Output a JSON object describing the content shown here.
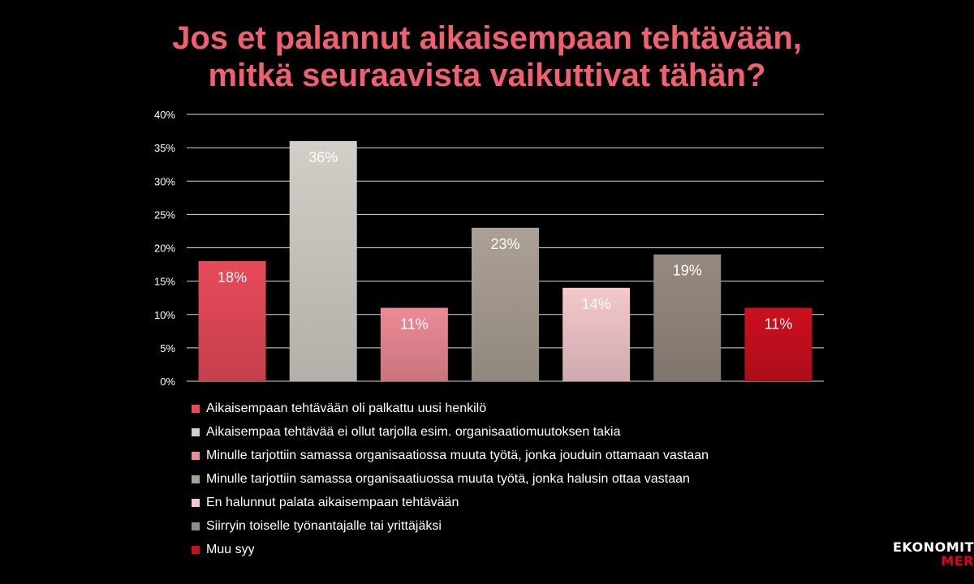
{
  "title": {
    "line1": "Jos et palannut aikaisempaan tehtävään,",
    "line2": "mitkä seuraavista vaikuttivat tähän?"
  },
  "chart_data": {
    "type": "bar",
    "categories": [
      "Aikaisempaan tehtävään oli palkattu uusi henkilö",
      "Aikaisempaa tehtävää ei ollut tarjolla esim. organisaatiomuutoksen takia",
      "Minulle tarjottiin samassa organisaatiossa muuta työtä, jonka jouduin ottamaan vastaan",
      "Minulle tarjottiin samassa organisaatiuossa muuta työtä, jonka halusin ottaa vastaan",
      "En halunnut palata aikaisempaan tehtävään",
      "Siirryin toiselle työnantajalle tai yrittäjäksi",
      "Muu syy"
    ],
    "values": [
      18,
      36,
      11,
      23,
      14,
      19,
      11
    ],
    "data_labels": [
      "18%",
      "36%",
      "11%",
      "23%",
      "14%",
      "19%",
      "11%"
    ],
    "colors": [
      "#e84a5a",
      "#d3cec7",
      "#ec8a94",
      "#aba093",
      "#f4c8cd",
      "#978a80",
      "#cc0f1e"
    ],
    "ylim": [
      0,
      40
    ],
    "yticks": [
      "0%",
      "5%",
      "10%",
      "15%",
      "20%",
      "25%",
      "30%",
      "35%",
      "40%"
    ],
    "grid": true,
    "legend_position": "bottom"
  },
  "logo": {
    "line1": "EKONOMIT",
    "line2": "MER"
  }
}
